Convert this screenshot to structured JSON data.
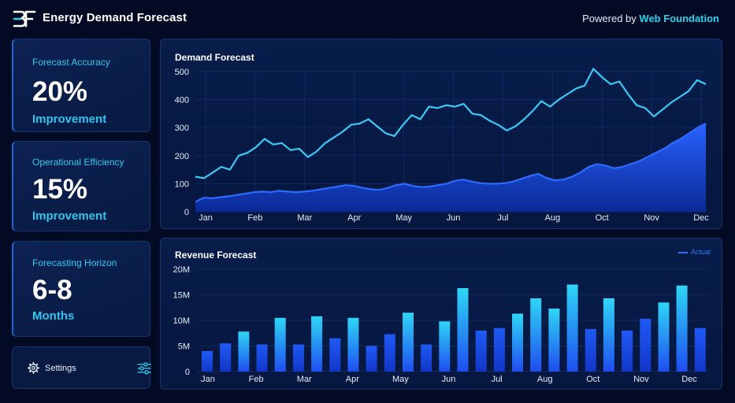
{
  "header": {
    "logo_icon": "bf-logo-icon",
    "title": "Energy Demand Forecast",
    "powered_prefix": "Powered by",
    "powered_brand": "Web Foundation"
  },
  "colors": {
    "background": "#030b24",
    "accent_cyan": "#2fd3ee",
    "accent_blue": "#1f5cf0",
    "line_light": "#3ec8f5"
  },
  "kpis": [
    {
      "label": "Forecast Accuracy",
      "value": "20%",
      "sub": "Improvement"
    },
    {
      "label": "Operational Efficiency",
      "value": "15%",
      "sub": "Improvement"
    },
    {
      "label": "Forecasting Horizon",
      "value": "6-8",
      "sub": "Months"
    }
  ],
  "settings": {
    "label": "Settings",
    "icon": "gear-icon",
    "toggle_icon": "sliders-icon"
  },
  "panels": {
    "demand_title": "Demand Forecast",
    "revenue_title": "Revenue Forecast",
    "revenue_legend": "Actual"
  },
  "chart_data": [
    {
      "type": "line",
      "title": "Demand Forecast",
      "xlabel": "",
      "ylabel": "",
      "x_tick_labels": [
        "Jan",
        "Feb",
        "Mar",
        "Apr",
        "May",
        "Jun",
        "Jul",
        "Aug",
        "Oct",
        "Nov",
        "Dec"
      ],
      "y_ticks": [
        0,
        100,
        200,
        300,
        400,
        500
      ],
      "ylim": [
        0,
        500
      ],
      "grid": true,
      "series": [
        {
          "style": "line",
          "color": "#3ec8f5",
          "values": [
            125,
            120,
            140,
            160,
            150,
            200,
            210,
            230,
            260,
            240,
            245,
            220,
            225,
            195,
            215,
            245,
            265,
            285,
            310,
            315,
            330,
            305,
            280,
            270,
            310,
            345,
            330,
            375,
            370,
            380,
            375,
            385,
            350,
            345,
            325,
            310,
            290,
            305,
            330,
            360,
            395,
            375,
            400,
            420,
            440,
            450,
            510,
            480,
            455,
            465,
            420,
            380,
            370,
            340,
            365,
            390,
            410,
            430,
            470,
            455
          ]
        },
        {
          "style": "area",
          "color": "#1f5cf0",
          "values": [
            35,
            50,
            48,
            52,
            55,
            60,
            65,
            70,
            72,
            70,
            75,
            72,
            70,
            72,
            75,
            80,
            85,
            90,
            95,
            92,
            85,
            80,
            78,
            85,
            95,
            100,
            92,
            88,
            90,
            95,
            100,
            110,
            115,
            108,
            102,
            100,
            100,
            102,
            108,
            118,
            128,
            135,
            120,
            112,
            115,
            125,
            140,
            160,
            170,
            165,
            155,
            160,
            170,
            180,
            195,
            210,
            225,
            245,
            260,
            280,
            300,
            315
          ]
        }
      ]
    },
    {
      "type": "bar",
      "title": "Revenue Forecast",
      "legend": [
        "Actual"
      ],
      "legend_placement": "top-right",
      "x_tick_labels": [
        "Jan",
        "Feb",
        "Mar",
        "Apr",
        "May",
        "Jun",
        "Jul",
        "Aug",
        "Oct",
        "Nov",
        "Dec"
      ],
      "y_tick_labels": [
        "0",
        "5M",
        "10M",
        "15M",
        "20M"
      ],
      "ylim": [
        0,
        20
      ],
      "unit": "M",
      "values": [
        4.0,
        5.5,
        7.8,
        5.3,
        10.5,
        5.3,
        10.8,
        6.5,
        10.5,
        5.0,
        7.3,
        11.5,
        5.3,
        9.8,
        16.3,
        8.0,
        8.5,
        11.3,
        14.3,
        12.3,
        17.0,
        8.3,
        14.3,
        8.0,
        10.3,
        13.5,
        16.8,
        8.5
      ],
      "highlight": [
        false,
        false,
        true,
        false,
        true,
        false,
        true,
        false,
        true,
        false,
        false,
        true,
        false,
        true,
        true,
        false,
        false,
        true,
        true,
        true,
        true,
        false,
        true,
        false,
        false,
        true,
        true,
        false
      ]
    }
  ]
}
